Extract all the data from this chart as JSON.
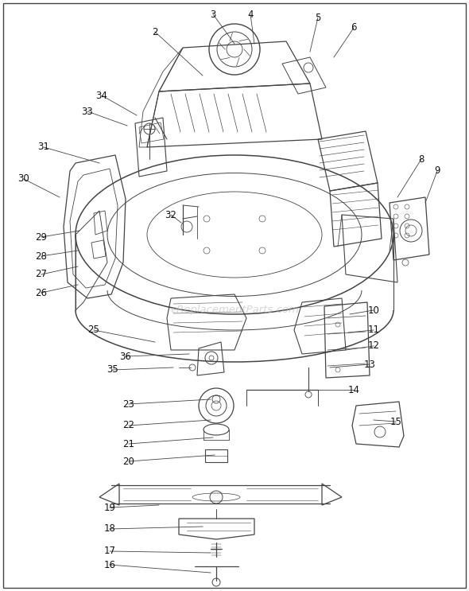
{
  "bg_color": "#ffffff",
  "border_color": "#000000",
  "line_color": "#444444",
  "label_color": "#111111",
  "watermark": "eReplacementParts.com",
  "watermark_color": "#bbbbbb",
  "leaders": [
    [
      "2",
      195,
      40,
      255,
      95
    ],
    [
      "3",
      268,
      18,
      295,
      55
    ],
    [
      "4",
      315,
      18,
      320,
      55
    ],
    [
      "5",
      400,
      22,
      390,
      65
    ],
    [
      "6",
      445,
      35,
      420,
      72
    ],
    [
      "8",
      530,
      200,
      500,
      248
    ],
    [
      "9",
      550,
      215,
      535,
      255
    ],
    [
      "10",
      470,
      390,
      440,
      395
    ],
    [
      "11",
      470,
      415,
      438,
      418
    ],
    [
      "12",
      470,
      435,
      435,
      440
    ],
    [
      "13",
      465,
      458,
      415,
      462
    ],
    [
      "14",
      445,
      490,
      385,
      490
    ],
    [
      "15",
      498,
      530,
      470,
      528
    ],
    [
      "16",
      138,
      710,
      265,
      720
    ],
    [
      "17",
      138,
      693,
      265,
      695
    ],
    [
      "18",
      138,
      665,
      255,
      662
    ],
    [
      "19",
      138,
      638,
      200,
      635
    ],
    [
      "20",
      162,
      580,
      270,
      572
    ],
    [
      "21",
      162,
      558,
      268,
      550
    ],
    [
      "22",
      162,
      535,
      265,
      528
    ],
    [
      "23",
      162,
      508,
      265,
      502
    ],
    [
      "25",
      118,
      415,
      195,
      430
    ],
    [
      "26",
      52,
      368,
      98,
      358
    ],
    [
      "27",
      52,
      345,
      98,
      335
    ],
    [
      "28",
      52,
      322,
      98,
      315
    ],
    [
      "29",
      52,
      298,
      100,
      290
    ],
    [
      "30",
      30,
      225,
      75,
      248
    ],
    [
      "31",
      55,
      185,
      125,
      205
    ],
    [
      "32",
      215,
      270,
      228,
      280
    ],
    [
      "33",
      110,
      140,
      160,
      158
    ],
    [
      "34",
      128,
      120,
      172,
      145
    ],
    [
      "35",
      142,
      465,
      218,
      462
    ],
    [
      "36",
      158,
      448,
      238,
      445
    ]
  ]
}
